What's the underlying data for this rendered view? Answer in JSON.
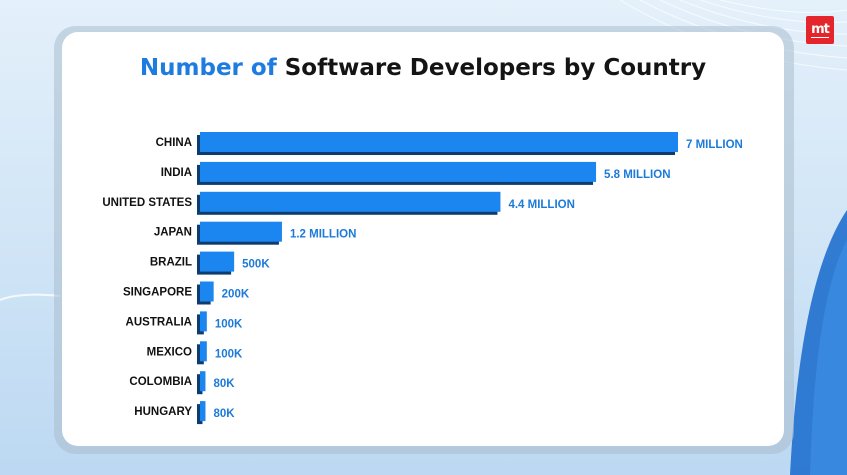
{
  "brand": {
    "logo_text": "mt",
    "logo_color": "#e4262c"
  },
  "colors": {
    "accent": "#1e7be0",
    "bar": "#1c86f0",
    "bar_shadow": "#0d3d70",
    "value_text": "#1c7ad8"
  },
  "chart_data": {
    "type": "bar",
    "orientation": "horizontal",
    "title_accent": "Number of",
    "title_rest": "Software Developers by Country",
    "xlabel": "",
    "ylabel": "",
    "grid": false,
    "legend": "none",
    "categories": [
      "CHINA",
      "INDIA",
      "UNITED STATES",
      "JAPAN",
      "BRAZIL",
      "SINGAPORE",
      "AUSTRALIA",
      "MEXICO",
      "COLOMBIA",
      "HUNGARY"
    ],
    "values": [
      7000000,
      5800000,
      4400000,
      1200000,
      500000,
      200000,
      100000,
      100000,
      80000,
      80000
    ],
    "value_labels": [
      "7 MILLION",
      "5.8 MILLION",
      "4.4 MILLION",
      "1.2 MILLION",
      "500K",
      "200K",
      "100K",
      "100K",
      "80K",
      "80K"
    ],
    "xlim": [
      0,
      7000000
    ]
  }
}
